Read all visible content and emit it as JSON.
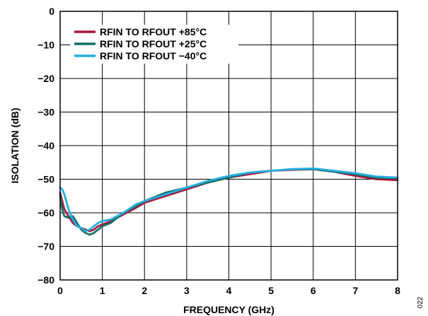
{
  "figure_id": "022",
  "chart_data": {
    "type": "line",
    "title": "",
    "xlabel": "FREQUENCY (GHz)",
    "ylabel": "ISOLATION (dB)",
    "xlim": [
      0,
      8
    ],
    "ylim": [
      -80,
      0
    ],
    "xticks": [
      0,
      1,
      2,
      3,
      4,
      5,
      6,
      7,
      8
    ],
    "yticks": [
      0,
      -10,
      -20,
      -30,
      -40,
      -50,
      -60,
      -70,
      -80
    ],
    "ytick_labels": [
      "0",
      "−10",
      "−20",
      "−30",
      "−40",
      "−50",
      "−60",
      "−70",
      "−80"
    ],
    "grid": true,
    "legend_position": "top-left",
    "series": [
      {
        "name": "RFIN TO RFOUT +85°C",
        "color": "#a6193c",
        "x": [
          0,
          0.1,
          0.2,
          0.3,
          0.4,
          0.5,
          0.6,
          0.7,
          0.8,
          0.9,
          1.0,
          1.2,
          1.5,
          1.8,
          2.0,
          2.5,
          3.0,
          3.5,
          4.0,
          4.5,
          5.0,
          5.5,
          6.0,
          6.5,
          7.0,
          7.5,
          8.0
        ],
        "y": [
          -54,
          -59,
          -61,
          -63,
          -64,
          -64.5,
          -65,
          -65.5,
          -65,
          -64,
          -63.5,
          -62.5,
          -60.5,
          -58.5,
          -57,
          -55,
          -53,
          -51,
          -49.5,
          -48.5,
          -47.5,
          -47.2,
          -47,
          -47.8,
          -49,
          -50,
          -50.3
        ]
      },
      {
        "name": "RFIN TO RFOUT +25°C",
        "color": "#14706a",
        "x": [
          0,
          0.05,
          0.1,
          0.2,
          0.3,
          0.4,
          0.5,
          0.6,
          0.7,
          0.8,
          0.9,
          1.0,
          1.2,
          1.5,
          1.8,
          2.0,
          2.5,
          3.0,
          3.5,
          4.0,
          4.5,
          5.0,
          5.5,
          6.0,
          6.5,
          7.0,
          7.5,
          8.0
        ],
        "y": [
          -55,
          -59,
          -61,
          -61.5,
          -61,
          -63,
          -65,
          -66,
          -66.5,
          -66,
          -65,
          -64,
          -63,
          -60,
          -58,
          -56.5,
          -54,
          -52.5,
          -51,
          -49.5,
          -48,
          -47.5,
          -47,
          -47,
          -47.8,
          -48.5,
          -49.5,
          -49.7
        ]
      },
      {
        "name": "RFIN TO RFOUT −40°C",
        "color": "#26aee0",
        "x": [
          0,
          0.05,
          0.1,
          0.2,
          0.3,
          0.4,
          0.5,
          0.6,
          0.7,
          0.8,
          0.9,
          1.0,
          1.2,
          1.5,
          1.8,
          2.0,
          2.5,
          3.0,
          3.5,
          4.0,
          4.5,
          5.0,
          5.5,
          6.0,
          6.5,
          7.0,
          7.5,
          8.0
        ],
        "y": [
          -52.5,
          -53,
          -54.5,
          -59,
          -62,
          -64,
          -64.5,
          -65.5,
          -65,
          -64,
          -63,
          -62.5,
          -62,
          -60,
          -57.5,
          -56.5,
          -54.5,
          -52.5,
          -50.5,
          -49,
          -48,
          -47.5,
          -47,
          -46.8,
          -47.5,
          -48.2,
          -49.2,
          -49.5
        ]
      }
    ]
  }
}
